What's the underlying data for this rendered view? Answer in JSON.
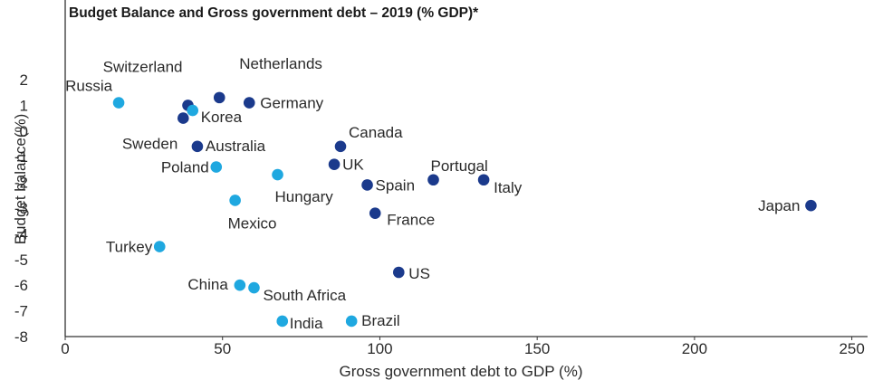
{
  "chart_data": {
    "type": "scatter",
    "title": "Budget Balance and Gross government debt – 2019 (% GDP)*",
    "xlabel": "Gross government debt to GDP (%)",
    "ylabel": "Budget balance(%)",
    "xlim": [
      0,
      255
    ],
    "ylim": [
      -8,
      2
    ],
    "xticks": [
      0,
      50,
      100,
      150,
      200,
      250
    ],
    "yticks": [
      2,
      1,
      0,
      -1,
      -2,
      -3,
      -4,
      -5,
      -6,
      -7,
      -8
    ],
    "grid": false,
    "colors": {
      "advanced": "#1b3a8c",
      "emerging": "#1fa8e0",
      "axis": "#333333"
    },
    "series": [
      {
        "group": "advanced",
        "points": [
          {
            "label": "Switzerland",
            "x": 39.0,
            "y": 1.0
          },
          {
            "label": "Netherlands",
            "x": 49.0,
            "y": 1.3
          },
          {
            "label": "Germany",
            "x": 58.5,
            "y": 1.1
          },
          {
            "label": "Sweden",
            "x": 37.5,
            "y": 0.5
          },
          {
            "label": "Australia",
            "x": 42.0,
            "y": -0.6
          },
          {
            "label": "Canada",
            "x": 87.5,
            "y": -0.6
          },
          {
            "label": "UK",
            "x": 85.5,
            "y": -1.3
          },
          {
            "label": "Spain",
            "x": 96.0,
            "y": -2.1
          },
          {
            "label": "Portugal",
            "x": 117.0,
            "y": -1.9
          },
          {
            "label": "Italy",
            "x": 133.0,
            "y": -1.9
          },
          {
            "label": "France",
            "x": 98.5,
            "y": -3.2
          },
          {
            "label": "Japan",
            "x": 237.0,
            "y": -2.9
          },
          {
            "label": "US",
            "x": 106.0,
            "y": -5.5
          }
        ]
      },
      {
        "group": "emerging",
        "points": [
          {
            "label": "Russia",
            "x": 17.0,
            "y": 1.1
          },
          {
            "label": "Korea",
            "x": 40.5,
            "y": 0.8
          },
          {
            "label": "Poland",
            "x": 48.0,
            "y": -1.4
          },
          {
            "label": "Hungary",
            "x": 67.5,
            "y": -1.7
          },
          {
            "label": "Mexico",
            "x": 54.0,
            "y": -2.7
          },
          {
            "label": "Turkey",
            "x": 30.0,
            "y": -4.5
          },
          {
            "label": "China",
            "x": 55.5,
            "y": -6.0
          },
          {
            "label": "South Africa",
            "x": 60.0,
            "y": -6.1
          },
          {
            "label": "India",
            "x": 69.0,
            "y": -7.4
          },
          {
            "label": "Brazil",
            "x": 91.0,
            "y": -7.4
          }
        ]
      }
    ]
  }
}
